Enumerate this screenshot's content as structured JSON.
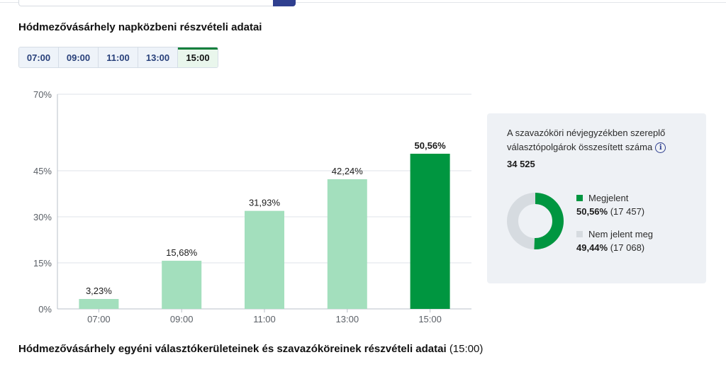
{
  "colors": {
    "accent": "#16803c",
    "bar_active": "#009640",
    "bar_inactive": "#a3dfbd",
    "donut_absent": "#d6dbe0",
    "tab_text": "#28407a"
  },
  "section1": {
    "title": "Hódmezővásárhely napközbeni részvételi adatai"
  },
  "tabs": [
    {
      "label": "07:00",
      "active": false
    },
    {
      "label": "09:00",
      "active": false
    },
    {
      "label": "11:00",
      "active": false
    },
    {
      "label": "13:00",
      "active": false
    },
    {
      "label": "15:00",
      "active": true
    }
  ],
  "chart_data": {
    "type": "bar",
    "categories": [
      "07:00",
      "09:00",
      "11:00",
      "13:00",
      "15:00"
    ],
    "values": [
      3.23,
      15.68,
      31.93,
      42.24,
      50.56
    ],
    "value_labels": [
      "3,23%",
      "15,68%",
      "31,93%",
      "42,24%",
      "50,56%"
    ],
    "highlight_index": 4,
    "y_ticks": [
      0,
      15,
      30,
      45,
      70
    ],
    "y_tick_labels": [
      "0%",
      "15%",
      "30%",
      "45%",
      "70%"
    ],
    "ylim": [
      0,
      70
    ],
    "grid": true
  },
  "summary": {
    "description": "A szavazóköri névjegyzékben szereplő választópolgárok összesített száma",
    "info_icon": "info-icon",
    "total": "34 525",
    "donut": {
      "present_fraction": 0.5056
    },
    "legend": [
      {
        "label": "Megjelent",
        "percent": "50,56%",
        "count": "(17 457)",
        "color": "#009640"
      },
      {
        "label": "Nem jelent meg",
        "percent": "49,44%",
        "count": "(17 068)",
        "color": "#d6dbe0"
      }
    ]
  },
  "section2": {
    "title": "Hódmezővásárhely egyéni választókerületeinek és szavazóköreinek részvételi adatai",
    "suffix": "(15:00)"
  }
}
